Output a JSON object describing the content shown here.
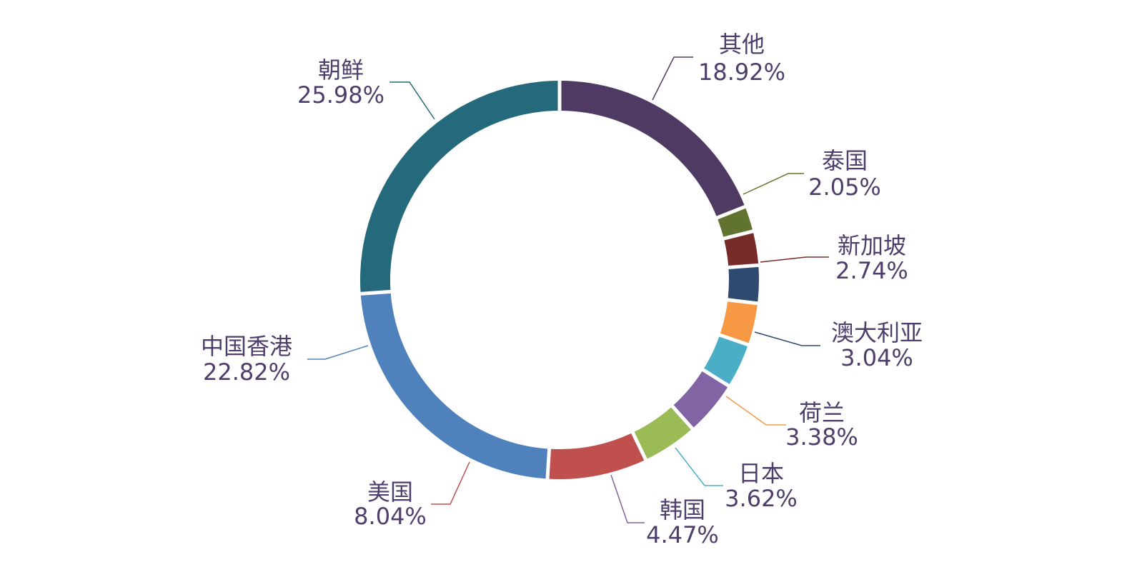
{
  "chart_data": {
    "type": "pie",
    "donut": true,
    "legend": "none",
    "slices": [
      {
        "label": "其他",
        "value": 18.92,
        "display": "18.92%",
        "color": "#4e3a62"
      },
      {
        "label": "泰国",
        "value": 2.05,
        "display": "2.05%",
        "color": "#61742f"
      },
      {
        "label": "新加坡",
        "value": 2.74,
        "display": "2.74%",
        "color": "#772b29"
      },
      {
        "label": "澳大利亚",
        "value": 3.04,
        "display": "3.04%",
        "color": "#2e4a6f"
      },
      {
        "label": "荷兰",
        "value": 3.38,
        "display": "3.38%",
        "color": "#f69844"
      },
      {
        "label": "日本",
        "value": 3.62,
        "display": "3.62%",
        "color": "#4aaec7"
      },
      {
        "label": "韩国",
        "value": 4.47,
        "display": "4.47%",
        "color": "#8064a4"
      },
      {
        "label": "",
        "value": 4.47,
        "display": "",
        "color": "#9bbb57"
      },
      {
        "label": "美国",
        "value": 8.04,
        "display": "8.04%",
        "color": "#c0504e"
      },
      {
        "label": "中国香港",
        "value": 22.82,
        "display": "22.82%",
        "color": "#4f81bd"
      },
      {
        "label": "朝鲜",
        "value": 25.98,
        "display": "25.98%",
        "color": "#256a7c"
      }
    ]
  }
}
